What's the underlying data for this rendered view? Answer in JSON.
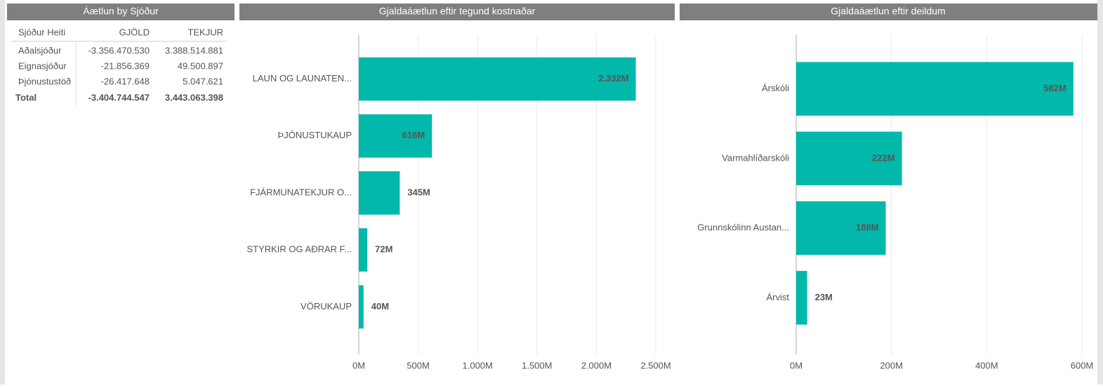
{
  "table": {
    "title": "Áætlun by Sjóður",
    "columns": [
      "Sjóður Heiti",
      "GJÖLD",
      "TEKJUR"
    ],
    "rows": [
      [
        "Aðalsjóður",
        "-3.356.470.530",
        "3.388.514.881"
      ],
      [
        "Eignasjóður",
        "-21.856.369",
        "49.500.897"
      ],
      [
        "Þjónustustöð",
        "-26.417.648",
        "5.047.621"
      ]
    ],
    "total": [
      "Total",
      "-3.404.744.547",
      "3.443.063.398"
    ]
  },
  "chart_data": [
    {
      "type": "bar",
      "orientation": "horizontal",
      "title": "Gjaldaáætlun eftir tegund kostnaðar",
      "categories": [
        "LAUN OG LAUNATEN...",
        "ÞJÓNUSTUKAUP",
        "FJÁRMUNATEKJUR O...",
        "STYRKIR OG AÐRAR F...",
        "VÖRUKAUP"
      ],
      "values": [
        2332,
        616,
        345,
        72,
        40
      ],
      "value_labels": [
        "2.332M",
        "616M",
        "345M",
        "72M",
        "40M"
      ],
      "color": "#01b8aa",
      "xlim": [
        0,
        2500
      ],
      "xticks": [
        {
          "value": 0,
          "label": "0M"
        },
        {
          "value": 500,
          "label": "500M"
        },
        {
          "value": 1000,
          "label": "1.000M"
        },
        {
          "value": 1500,
          "label": "1.500M"
        },
        {
          "value": 2000,
          "label": "2.000M"
        },
        {
          "value": 2500,
          "label": "2.500M"
        }
      ],
      "grid": true
    },
    {
      "type": "bar",
      "orientation": "horizontal",
      "title": "Gjaldaáætlun eftir deildum",
      "categories": [
        "Árskóli",
        "Varmahlíðarskóli",
        "Grunnskólinn Austan...",
        "Árvist"
      ],
      "values": [
        582,
        222,
        188,
        23
      ],
      "value_labels": [
        "582M",
        "222M",
        "188M",
        "23M"
      ],
      "color": "#01b8aa",
      "xlim": [
        0,
        600
      ],
      "xticks": [
        {
          "value": 0,
          "label": "0M"
        },
        {
          "value": 200,
          "label": "200M"
        },
        {
          "value": 400,
          "label": "400M"
        },
        {
          "value": 600,
          "label": "600M"
        }
      ],
      "grid": true
    }
  ]
}
